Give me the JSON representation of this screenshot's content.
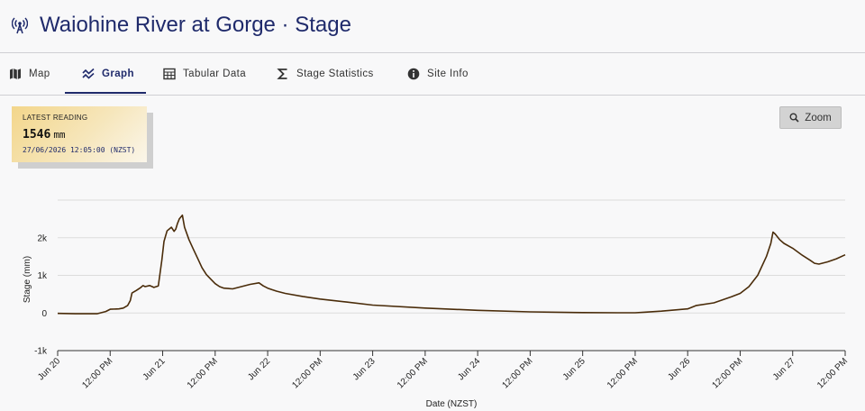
{
  "header": {
    "title": "Waiohine River at Gorge · Stage"
  },
  "tabs": [
    {
      "label": "Map",
      "icon": "map-icon",
      "active": false
    },
    {
      "label": "Graph",
      "icon": "graph-icon",
      "active": true
    },
    {
      "label": "Tabular Data",
      "icon": "table-icon",
      "active": false
    },
    {
      "label": "Stage Statistics",
      "icon": "sigma-icon",
      "active": false
    },
    {
      "label": "Site Info",
      "icon": "info-icon",
      "active": false
    }
  ],
  "latest_reading": {
    "label": "LATEST READING",
    "value": "1546",
    "unit": "mm",
    "timestamp": "27/06/2026 12:05:00 (NZST)"
  },
  "zoom": {
    "label": "Zoom",
    "icon": "search-icon"
  },
  "colors": {
    "accent": "#1f2a6b",
    "line": "#4a2c0a",
    "grid": "#dcdcdc"
  },
  "chart_data": {
    "type": "line",
    "xlabel": "Date (NZST)",
    "ylabel": "Stage (mm)",
    "xlim": [
      0,
      180
    ],
    "ylim": [
      -1000,
      3000
    ],
    "grid": true,
    "x_unit": "hours since Jun 20 00:00",
    "y_ticks": [
      {
        "value": -1000,
        "label": "-1k"
      },
      {
        "value": 0,
        "label": "0"
      },
      {
        "value": 1000,
        "label": "1k"
      },
      {
        "value": 2000,
        "label": "2k"
      }
    ],
    "x_ticks": [
      {
        "value": 0,
        "label": "Jun 20"
      },
      {
        "value": 12,
        "label": "12:00 PM"
      },
      {
        "value": 24,
        "label": "Jun 21"
      },
      {
        "value": 36,
        "label": "12:00 PM"
      },
      {
        "value": 48,
        "label": "Jun 22"
      },
      {
        "value": 60,
        "label": "12:00 PM"
      },
      {
        "value": 72,
        "label": "Jun 23"
      },
      {
        "value": 84,
        "label": "12:00 PM"
      },
      {
        "value": 96,
        "label": "Jun 24"
      },
      {
        "value": 108,
        "label": "12:00 PM"
      },
      {
        "value": 120,
        "label": "Jun 25"
      },
      {
        "value": 132,
        "label": "12:00 PM"
      },
      {
        "value": 144,
        "label": "Jun 26"
      },
      {
        "value": 156,
        "label": "12:00 PM"
      },
      {
        "value": 168,
        "label": "Jun 27"
      },
      {
        "value": 180,
        "label": "12:00 PM"
      }
    ],
    "series": [
      {
        "name": "",
        "x": [
          0,
          4,
          9,
          11,
          12,
          14,
          15,
          16,
          16.6,
          17,
          18,
          19,
          19.5,
          20,
          21,
          21.6,
          22,
          23,
          23.8,
          24.3,
          25,
          26,
          26.6,
          27,
          27.4,
          27.8,
          28.5,
          29,
          30,
          31,
          32,
          33,
          34,
          35,
          36,
          37,
          38,
          40,
          42,
          44,
          46,
          47,
          48,
          49,
          50,
          52,
          56,
          60,
          66,
          72,
          84,
          96,
          108,
          120,
          128,
          132,
          134,
          138,
          141,
          144,
          146,
          150,
          154,
          156,
          158,
          160,
          162,
          163,
          163.5,
          164,
          165,
          166,
          168,
          170,
          172,
          173,
          174,
          176,
          178,
          180
        ],
        "y": [
          -10,
          -20,
          -20,
          40,
          100,
          110,
          130,
          200,
          330,
          530,
          600,
          680,
          730,
          700,
          730,
          700,
          680,
          720,
          1400,
          1900,
          2180,
          2280,
          2170,
          2230,
          2380,
          2500,
          2600,
          2280,
          1950,
          1700,
          1450,
          1200,
          1020,
          900,
          780,
          700,
          660,
          640,
          700,
          760,
          800,
          720,
          660,
          620,
          580,
          520,
          440,
          370,
          290,
          210,
          130,
          70,
          30,
          10,
          5,
          5,
          20,
          50,
          80,
          110,
          200,
          270,
          430,
          520,
          700,
          1000,
          1500,
          1850,
          2150,
          2100,
          1950,
          1850,
          1720,
          1550,
          1400,
          1320,
          1300,
          1360,
          1440,
          1546
        ]
      }
    ]
  }
}
